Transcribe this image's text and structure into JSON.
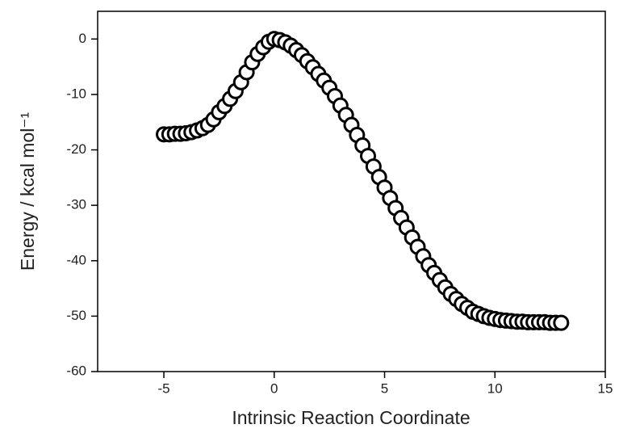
{
  "chart_data": {
    "type": "scatter",
    "xlabel": "Intrinsic Reaction Coordinate",
    "ylabel": "Energy / kcal mol⁻¹",
    "x": [
      -5,
      -4.75,
      -4.5,
      -4.25,
      -4,
      -3.75,
      -3.5,
      -3.25,
      -3,
      -2.75,
      -2.5,
      -2.25,
      -2,
      -1.75,
      -1.5,
      -1.25,
      -1,
      -0.75,
      -0.5,
      -0.25,
      0,
      0.25,
      0.5,
      0.75,
      1,
      1.25,
      1.5,
      1.75,
      2,
      2.25,
      2.5,
      2.75,
      3,
      3.25,
      3.5,
      3.75,
      4,
      4.25,
      4.5,
      4.75,
      5,
      5.25,
      5.5,
      5.75,
      6,
      6.25,
      6.5,
      6.75,
      7,
      7.25,
      7.5,
      7.75,
      8,
      8.25,
      8.5,
      8.75,
      9,
      9.25,
      9.5,
      9.75,
      10,
      10.25,
      10.5,
      10.75,
      11,
      11.25,
      11.5,
      11.75,
      12,
      12.25,
      12.5,
      12.75,
      13
    ],
    "values": [
      -17.2,
      -17.2,
      -17.1,
      -17.1,
      -17.0,
      -16.8,
      -16.5,
      -16.1,
      -15.5,
      -14.5,
      -13.2,
      -12.1,
      -10.8,
      -9.4,
      -7.8,
      -6.0,
      -4.2,
      -2.7,
      -1.5,
      -0.5,
      0,
      -0.2,
      -0.6,
      -1.2,
      -2.0,
      -2.9,
      -4.0,
      -5.1,
      -6.3,
      -7.5,
      -8.8,
      -10.3,
      -12.0,
      -13.7,
      -15.5,
      -17.3,
      -19.2,
      -21.1,
      -23.0,
      -24.9,
      -26.8,
      -28.7,
      -30.5,
      -32.3,
      -34.0,
      -35.8,
      -37.5,
      -39.2,
      -40.8,
      -42.2,
      -43.5,
      -44.8,
      -46.0,
      -46.9,
      -47.8,
      -48.5,
      -49.2,
      -49.6,
      -50.0,
      -50.3,
      -50.5,
      -50.7,
      -50.8,
      -50.9,
      -51.0,
      -51.0,
      -51.1,
      -51.1,
      -51.1,
      -51.1,
      -51.2,
      -51.2,
      -51.2
    ],
    "marker_color": "#000000",
    "xlim": [
      -8,
      15
    ],
    "xticks": [
      -5,
      0,
      5,
      10,
      15
    ],
    "ylim": [
      -60,
      5
    ],
    "yticks": [
      -60,
      -50,
      -40,
      -30,
      -20,
      -10,
      0
    ]
  }
}
